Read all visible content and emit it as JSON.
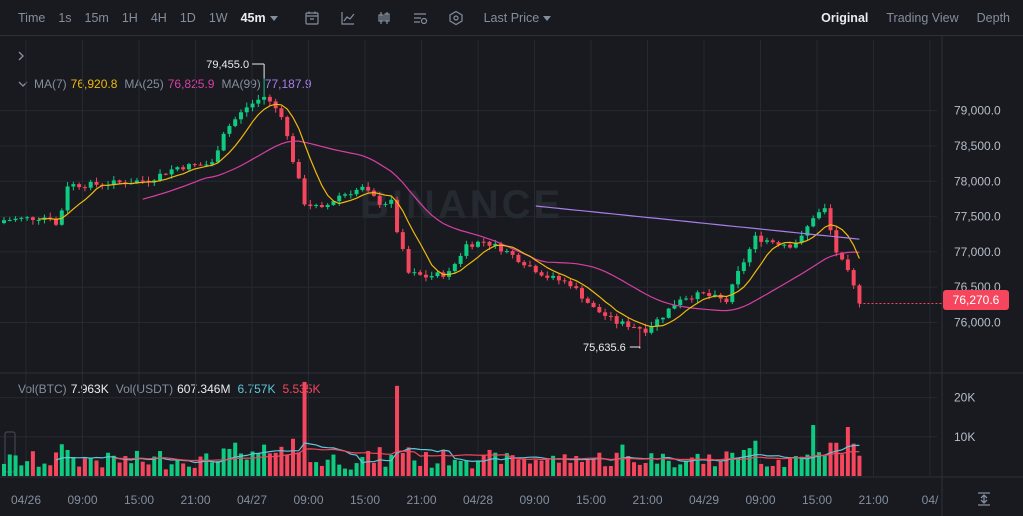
{
  "toolbar": {
    "left_items": [
      {
        "label": "Time",
        "active": false
      },
      {
        "label": "1s",
        "active": false
      },
      {
        "label": "15m",
        "active": false
      },
      {
        "label": "1H",
        "active": false
      },
      {
        "label": "4H",
        "active": false
      },
      {
        "label": "1D",
        "active": false
      },
      {
        "label": "1W",
        "active": false
      },
      {
        "label": "45m",
        "active": true
      }
    ],
    "icons": [
      "calendar-icon",
      "indicator-icon",
      "candle-type-icon",
      "settings-icon",
      "hexagon-icon"
    ],
    "price_type": "Last Price",
    "right_items": [
      {
        "label": "Original",
        "active": true
      },
      {
        "label": "Trading View",
        "active": false
      },
      {
        "label": "Depth",
        "active": false
      }
    ]
  },
  "ma_legend": [
    {
      "label": "MA(7)",
      "value": "76,920.8",
      "color": "#f0b90b"
    },
    {
      "label": "MA(25)",
      "value": "76,825.9",
      "color": "#d63fa3"
    },
    {
      "label": "MA(99)",
      "value": "77,187.9",
      "color": "#a97ee8"
    }
  ],
  "vol_legend": [
    {
      "label": "Vol(BTC)",
      "value": "7.963K",
      "color": "#eaecef"
    },
    {
      "label": "Vol(USDT)",
      "value": "607.346M",
      "color": "#eaecef"
    },
    {
      "label": "",
      "value": "6.757K",
      "color": "#5fc6d9"
    },
    {
      "label": "",
      "value": "5.535K",
      "color": "#f6465d"
    }
  ],
  "current_price": "76,270.6",
  "colors": {
    "up": "#0ecb81",
    "down": "#f6465d",
    "ma7": "#f0b90b",
    "ma25": "#d63fa3",
    "ma99": "#a97ee8",
    "grid": "#252930",
    "vol_ma1": "#5fc6d9",
    "vol_ma2": "#f6465d"
  },
  "chart_data": {
    "type": "candlestick",
    "interval": "45m",
    "price_axis": {
      "ticks": [
        76000,
        76500,
        77000,
        77500,
        78000,
        78500,
        79000
      ],
      "tick_labels": [
        "76,000.0",
        "76,500.0",
        "77,000.0",
        "77,500.0",
        "78,000.0",
        "78,500.0",
        "79,000.0"
      ],
      "range": [
        75300,
        80000
      ]
    },
    "volume_axis": {
      "ticks": [
        10000,
        20000
      ],
      "tick_labels": [
        "10K",
        "20K"
      ],
      "range": [
        0,
        25000
      ]
    },
    "time_axis": {
      "labels": [
        "04/26",
        "09:00",
        "15:00",
        "21:00",
        "04/27",
        "09:00",
        "15:00",
        "21:00",
        "04/28",
        "09:00",
        "15:00",
        "21:00",
        "04/29",
        "09:00",
        "15:00",
        "21:00",
        "04/"
      ]
    },
    "annotations": [
      {
        "type": "high",
        "value": "79,455.0"
      },
      {
        "type": "low",
        "value": "75,635.6"
      }
    ],
    "watermark": "BINANCE",
    "anchors": [
      [
        0,
        77450
      ],
      [
        8,
        77500
      ],
      [
        9,
        77380
      ],
      [
        10,
        77600
      ],
      [
        11,
        77950
      ],
      [
        15,
        77950
      ],
      [
        20,
        77980
      ],
      [
        25,
        78020
      ],
      [
        30,
        78200
      ],
      [
        36,
        78250
      ],
      [
        38,
        78700
      ],
      [
        42,
        79050
      ],
      [
        45,
        79200
      ],
      [
        48,
        78950
      ],
      [
        50,
        78300
      ],
      [
        52,
        77700
      ],
      [
        55,
        77600
      ],
      [
        58,
        77800
      ],
      [
        62,
        77900
      ],
      [
        65,
        77700
      ],
      [
        67,
        77700
      ],
      [
        68,
        77300
      ],
      [
        70,
        76700
      ],
      [
        73,
        76650
      ],
      [
        77,
        76700
      ],
      [
        80,
        77100
      ],
      [
        83,
        77150
      ],
      [
        86,
        77050
      ],
      [
        90,
        76850
      ],
      [
        94,
        76650
      ],
      [
        98,
        76550
      ],
      [
        102,
        76200
      ],
      [
        106,
        76000
      ],
      [
        109,
        75950
      ],
      [
        111,
        75900
      ],
      [
        114,
        76100
      ],
      [
        117,
        76350
      ],
      [
        121,
        76400
      ],
      [
        125,
        76300
      ],
      [
        127,
        76700
      ],
      [
        130,
        77200
      ],
      [
        133,
        77150
      ],
      [
        136,
        77100
      ],
      [
        138,
        77200
      ],
      [
        140,
        77500
      ],
      [
        142,
        77600
      ],
      [
        144,
        77000
      ],
      [
        146,
        76700
      ],
      [
        148,
        76300
      ]
    ],
    "candle_count": 149,
    "last_close": 76270.6,
    "ma99_start_index": 92
  }
}
